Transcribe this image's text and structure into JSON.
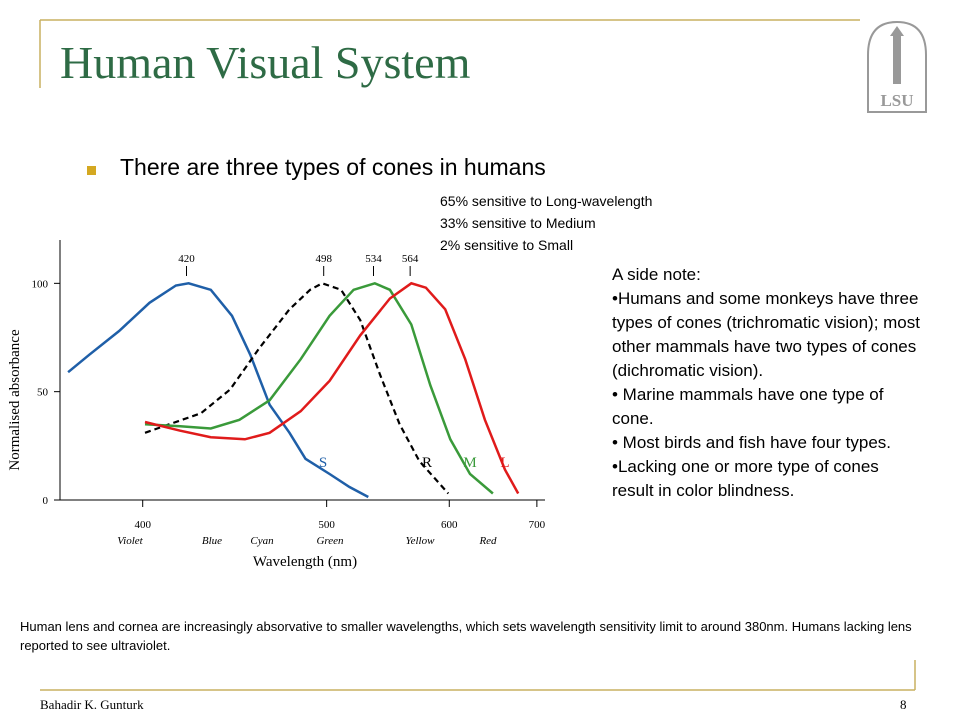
{
  "header": {
    "title": "Human Visual System",
    "logo": "LSU"
  },
  "bullet": "There are three types of cones in humans",
  "stats": [
    "65% sensitive to Long-wavelength",
    "33% sensitive to Medium",
    "2% sensitive to Small"
  ],
  "side_note": [
    "A side note:",
    "•Humans and some monkeys have three types of cones (trichromatic vision); most other mammals have two types of cones (dichromatic vision).",
    "• Marine mammals have one type of cone.",
    "• Most birds and fish have four types.",
    "•Lacking one or more type of cones result in color blindness."
  ],
  "footnote": "Human lens and cornea are increasingly absorvative to smaller wavelengths, which sets wavelength sensitivity limit to around 380nm. Humans lacking lens reported to see ultraviolet.",
  "footer": {
    "author": "Bahadir K. Gunturk",
    "page": "8"
  },
  "chart_data": {
    "type": "line",
    "x_scale": "reciprocal",
    "x_label": "Wavelength (nm)",
    "y_label": "Normalised absorbance",
    "xlim": [
      367,
      711
    ],
    "xticks": [
      400,
      500,
      600,
      700
    ],
    "ylim": [
      0,
      120
    ],
    "yticks": [
      0,
      50,
      100
    ],
    "color_labels": [
      "Violet",
      "Blue",
      "Cyan",
      "Green",
      "Yellow",
      "Red"
    ],
    "peak_ticks": [
      420,
      498,
      534,
      564
    ],
    "series": [
      {
        "name": "S",
        "color": "#1f5fa8",
        "dashed": false,
        "x": [
          370,
          378,
          390,
          403,
          415,
          421,
          432,
          443,
          453,
          464,
          476,
          486,
          502,
          516,
          530
        ],
        "values": [
          59,
          67,
          78,
          91,
          99,
          100,
          97,
          85,
          67,
          44,
          31,
          19,
          12,
          6,
          1.4
        ]
      },
      {
        "name": "R",
        "color": "#000000",
        "dashed": true,
        "x": [
          401,
          412,
          427,
          442,
          458,
          476,
          489,
          497,
          510,
          524,
          539,
          555,
          572,
          599
        ],
        "values": [
          31,
          35,
          40,
          51,
          70,
          88,
          97,
          100,
          97,
          83,
          58,
          35,
          18,
          3
        ]
      },
      {
        "name": "M",
        "color": "#3a9a3a",
        "dashed": false,
        "x": [
          401,
          417,
          432,
          447,
          464,
          483,
          502,
          519,
          535,
          547,
          565,
          582,
          601,
          621,
          646
        ],
        "values": [
          35,
          34,
          33,
          37,
          46,
          65,
          85,
          97,
          100,
          97,
          81,
          53,
          28,
          12,
          3
        ]
      },
      {
        "name": "L",
        "color": "#e01b1b",
        "dashed": false,
        "x": [
          401,
          417,
          432,
          450,
          464,
          483,
          502,
          524,
          547,
          565,
          578,
          596,
          616,
          637,
          660,
          676
        ],
        "values": [
          36,
          32,
          29,
          28,
          31,
          41,
          55,
          76,
          93,
          100,
          98,
          88,
          65,
          37,
          14,
          3
        ]
      }
    ]
  }
}
